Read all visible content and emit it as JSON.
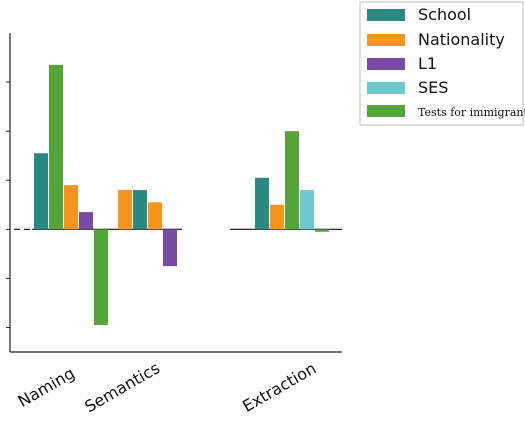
{
  "chart_data": {
    "type": "bar",
    "categories": [
      "Naming",
      "Semantics",
      "Extraction"
    ],
    "series": [
      {
        "name": "School",
        "color": "#2a8a82",
        "values": [
          0.31,
          0.16,
          0.21
        ]
      },
      {
        "name": "Nationality",
        "color": "#f7941d",
        "values": [
          0.18,
          0.16,
          0.1
        ]
      },
      {
        "name": "L1",
        "color": "#7a4ba5",
        "values": [
          0.07,
          -0.15,
          null
        ]
      },
      {
        "name": "SES",
        "color": "#6ec8d0",
        "values": [
          null,
          null,
          0.16
        ]
      },
      {
        "name": "Tests for immigrants",
        "color": "#56a53a",
        "values": [
          0.67,
          null,
          0.4
        ]
      }
    ],
    "semantics_extra_bar": {
      "series": "Nationality",
      "value": 0.11
    },
    "naming_extra_bar": {
      "series": "Tests for immigrants",
      "value": -0.39
    },
    "extraction_extra_bar": {
      "series": "Tests for immigrants",
      "value": -0.01
    },
    "ylim": [
      -0.5,
      0.8
    ],
    "grid": false,
    "legend_position": "top-right",
    "xlabel": "",
    "ylabel": "",
    "title": ""
  }
}
